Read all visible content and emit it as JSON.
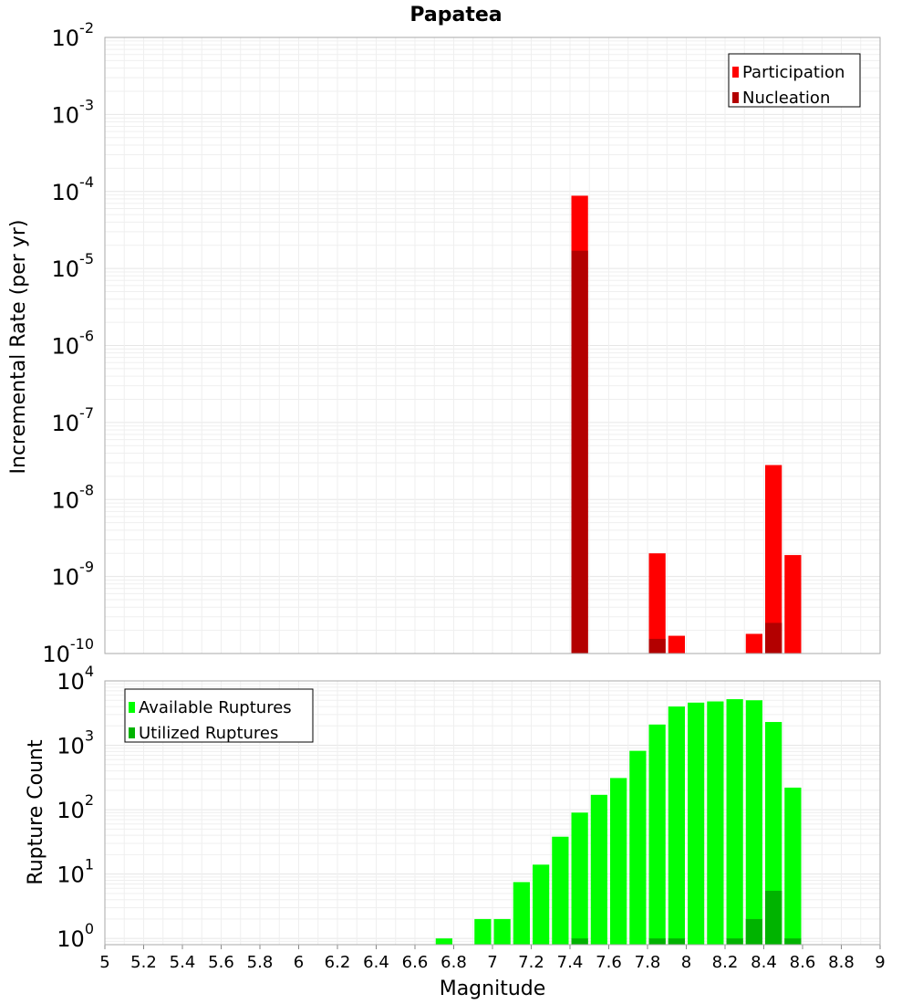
{
  "chart_data": [
    {
      "type": "bar",
      "title": "Papatea",
      "xlabel": "",
      "ylabel": "Incremental Rate (per yr)",
      "yscale": "log",
      "ylim": [
        1e-10,
        0.01
      ],
      "xlim": [
        5,
        9
      ],
      "bin_width": 0.1,
      "y_ticks": [
        {
          "base": "10",
          "exp": "-10"
        },
        {
          "base": "10",
          "exp": "-9"
        },
        {
          "base": "10",
          "exp": "-8"
        },
        {
          "base": "10",
          "exp": "-7"
        },
        {
          "base": "10",
          "exp": "-6"
        },
        {
          "base": "10",
          "exp": "-5"
        },
        {
          "base": "10",
          "exp": "-4"
        },
        {
          "base": "10",
          "exp": "-3"
        },
        {
          "base": "10",
          "exp": "-2"
        }
      ],
      "grid": true,
      "legend_position": "top-right",
      "series": [
        {
          "name": "Participation",
          "color": "#ff0000",
          "x": [
            7.45,
            7.85,
            7.95,
            8.35,
            8.45,
            8.55
          ],
          "values": [
            8.8e-05,
            2e-09,
            1.7e-10,
            1.8e-10,
            2.8e-08,
            1.9e-09
          ]
        },
        {
          "name": "Nucleation",
          "color": "#b30000",
          "x": [
            7.45,
            7.85,
            8.45
          ],
          "values": [
            1.7e-05,
            1.55e-10,
            2.5e-10
          ]
        }
      ]
    },
    {
      "type": "bar",
      "title": "",
      "xlabel": "Magnitude",
      "ylabel": "Rupture Count",
      "yscale": "log",
      "ylim": [
        0.8,
        10000
      ],
      "xlim": [
        5,
        9
      ],
      "bin_width": 0.1,
      "y_ticks": [
        {
          "value": 1,
          "base": "10",
          "exp": "0"
        },
        {
          "value": 10,
          "base": "10",
          "exp": "1"
        },
        {
          "value": 100,
          "base": "10",
          "exp": "2"
        },
        {
          "value": 1000,
          "base": "10",
          "exp": "3"
        },
        {
          "value": 10000,
          "base": "10",
          "exp": "4"
        }
      ],
      "x_ticks": [
        "5",
        "5.2",
        "5.4",
        "5.6",
        "5.8",
        "6",
        "6.2",
        "6.4",
        "6.6",
        "6.8",
        "7",
        "7.2",
        "7.4",
        "7.6",
        "7.8",
        "8",
        "8.2",
        "8.4",
        "8.6",
        "8.8",
        "9"
      ],
      "grid": true,
      "legend_position": "top-left",
      "series": [
        {
          "name": "Available Ruptures",
          "color": "#00ff00",
          "x": [
            6.75,
            6.95,
            7.05,
            7.15,
            7.25,
            7.35,
            7.45,
            7.55,
            7.65,
            7.75,
            7.85,
            7.95,
            8.05,
            8.15,
            8.25,
            8.35,
            8.45,
            8.55
          ],
          "values": [
            1,
            2,
            2,
            7.5,
            14,
            38,
            90,
            170,
            310,
            820,
            2100,
            4000,
            4600,
            4800,
            5200,
            5000,
            2300,
            220
          ]
        },
        {
          "name": "Utilized Ruptures",
          "color": "#00b300",
          "x": [
            7.45,
            7.85,
            7.95,
            8.25,
            8.35,
            8.45,
            8.55
          ],
          "values": [
            1,
            1,
            1,
            1,
            2,
            5.5,
            1
          ]
        }
      ]
    }
  ]
}
